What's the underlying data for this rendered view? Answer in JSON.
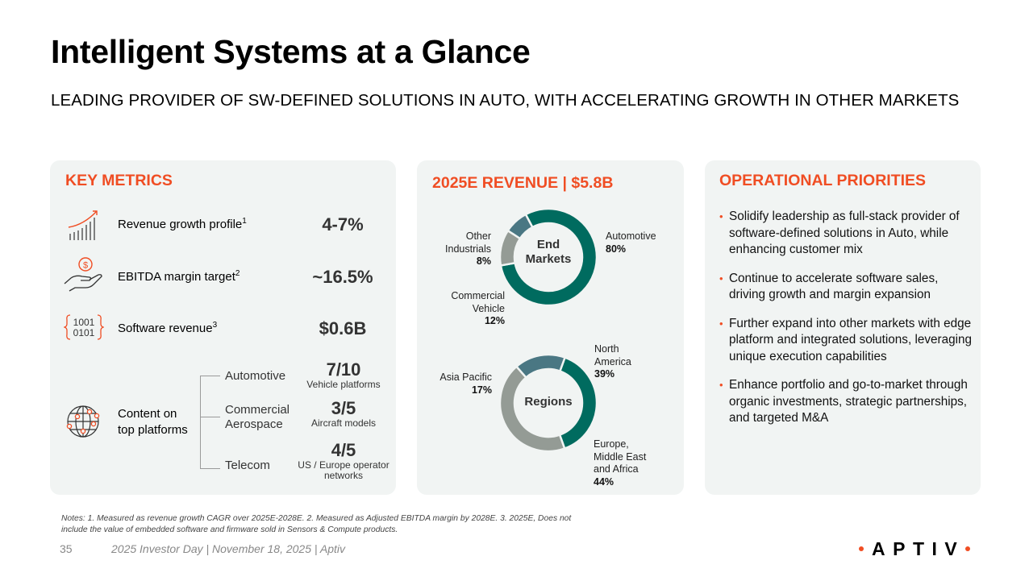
{
  "header": {
    "title": "Intelligent Systems at a Glance",
    "subtitle": "LEADING PROVIDER OF SW-DEFINED SOLUTIONS IN AUTO, WITH ACCELERATING GROWTH IN OTHER MARKETS"
  },
  "key_metrics": {
    "title": "KEY METRICS",
    "items": [
      {
        "icon": "growth-chart-icon",
        "label": "Revenue growth profile",
        "footnote": "1",
        "value": "4-7%"
      },
      {
        "icon": "hand-dollar-icon",
        "label": "EBITDA margin target",
        "footnote": "2",
        "value": "~16.5%"
      },
      {
        "icon": "binary-code-icon",
        "label": "Software revenue",
        "footnote": "3",
        "value": "$0.6B"
      }
    ],
    "platforms": {
      "icon": "globe-network-icon",
      "label_line1": "Content on",
      "label_line2": "top platforms",
      "items": [
        {
          "label_line1": "Automotive",
          "label_line2": "",
          "value": "7/10",
          "caption_line1": "Vehicle platforms",
          "caption_line2": ""
        },
        {
          "label_line1": "Commercial",
          "label_line2": "Aerospace",
          "value": "3/5",
          "caption_line1": "Aircraft models",
          "caption_line2": ""
        },
        {
          "label_line1": "Telecom",
          "label_line2": "",
          "value": "4/5",
          "caption_line1": "US / Europe operator",
          "caption_line2": "networks"
        }
      ]
    }
  },
  "revenue": {
    "title": "2025E REVENUE | $5.8B"
  },
  "chart_data": [
    {
      "type": "pie",
      "title": "End Markets",
      "center_label_line1": "End",
      "center_label_line2": "Markets",
      "categories": [
        "Automotive",
        "Commercial Vehicle",
        "Other Industrials"
      ],
      "values": [
        80,
        12,
        8
      ],
      "unit": "%",
      "colors": [
        "#006b5f",
        "#949b95",
        "#4a7783"
      ],
      "labels": [
        {
          "line1": "Automotive",
          "line2": "",
          "value": "80%"
        },
        {
          "line1": "Commercial",
          "line2": "Vehicle",
          "value": "12%"
        },
        {
          "line1": "Other",
          "line2": "Industrials",
          "value": "8%"
        }
      ]
    },
    {
      "type": "pie",
      "title": "Regions",
      "center_label_line1": "Regions",
      "categories": [
        "North America",
        "Europe, Middle East and Africa",
        "Asia Pacific"
      ],
      "values": [
        39,
        44,
        17
      ],
      "unit": "%",
      "colors": [
        "#006b5f",
        "#949b95",
        "#4a7783"
      ],
      "labels": [
        {
          "line1": "North",
          "line2": "America",
          "line3": "",
          "value": "39%"
        },
        {
          "line1": "Europe,",
          "line2": "Middle East",
          "line3": "and Africa",
          "value": "44%"
        },
        {
          "line1": "Asia Pacific",
          "line2": "",
          "line3": "",
          "value": "17%"
        }
      ]
    }
  ],
  "priorities": {
    "title": "OPERATIONAL PRIORITIES",
    "bullets": [
      "Solidify leadership as full-stack provider of software-defined solutions in Auto, while enhancing customer mix",
      "Continue to accelerate software sales, driving growth and margin expansion",
      "Further expand into other markets with edge platform and integrated solutions, leveraging unique execution capabilities",
      "Enhance portfolio and go-to-market through organic investments, strategic partnerships, and targeted M&A"
    ]
  },
  "footer": {
    "notes": "Notes: 1. Measured as revenue growth CAGR over 2025E-2028E. 2. Measured as Adjusted EBITDA margin by 2028E. 3. 2025E, Does not include the value of embedded software and firmware sold in Sensors & Compute products.",
    "page_number": "35",
    "event_text": "2025 Investor Day | November 18, 2025 | Aptiv",
    "logo_text": "APTIV"
  },
  "colors": {
    "accent": "#f04d23",
    "panel_bg": "#f1f4f3",
    "teal": "#006b5f",
    "gray": "#949b95",
    "slate": "#4a7783"
  }
}
